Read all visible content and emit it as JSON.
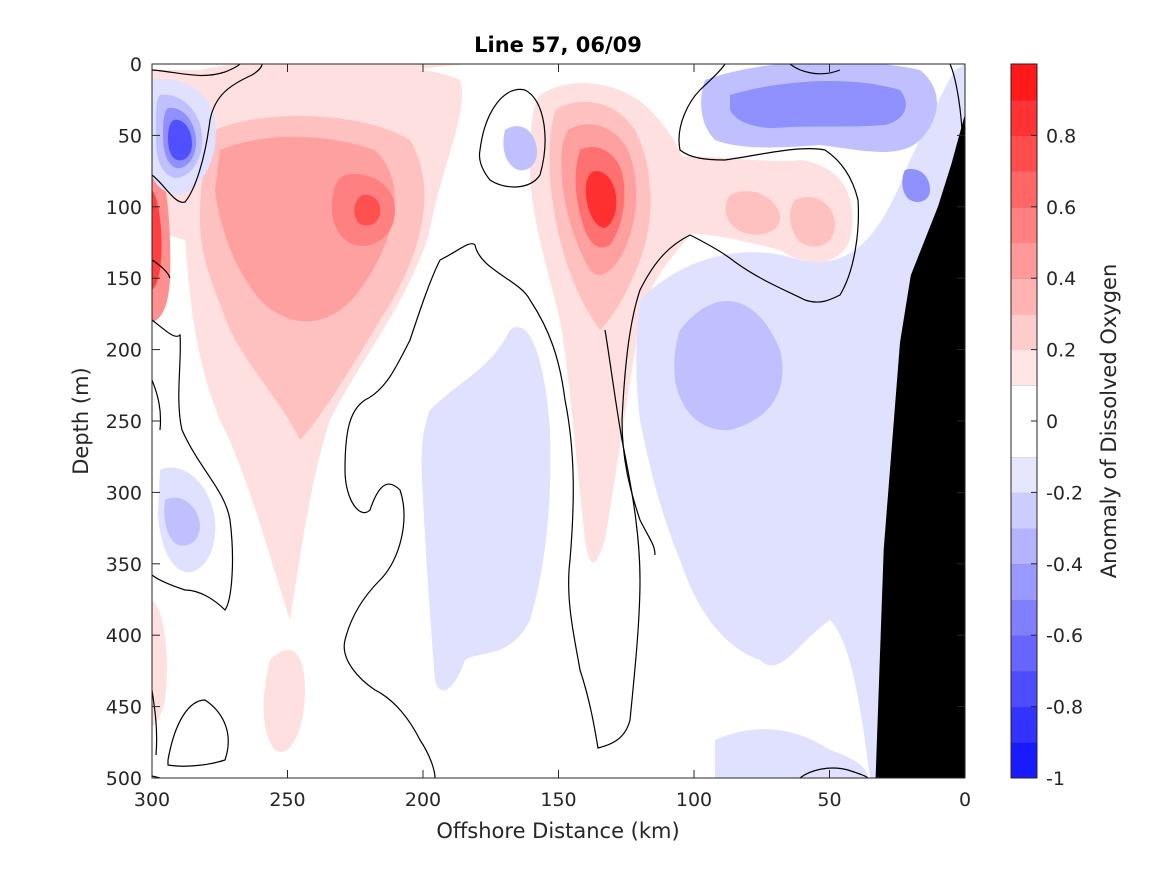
{
  "chart_data": {
    "type": "heatmap",
    "subtype": "filled-contour",
    "title": "Line 57, 06/09",
    "xlabel": "Offshore Distance (km)",
    "ylabel": "Depth (m)",
    "xlim": [
      300,
      0
    ],
    "ylim": [
      0,
      500
    ],
    "x_reversed": true,
    "y_reversed": true,
    "xticks": [
      "300",
      "250",
      "200",
      "150",
      "100",
      "50",
      "0"
    ],
    "yticks": [
      "0",
      "50",
      "100",
      "150",
      "200",
      "250",
      "300",
      "350",
      "400",
      "450",
      "500"
    ],
    "colorbar": {
      "label": "Anomaly of Dissolved Oxygen",
      "range": [
        -1,
        1
      ],
      "step": 0.1,
      "ticks": [
        "0.8",
        "0.6",
        "0.4",
        "0.2",
        "0",
        "-0.2",
        "-0.4",
        "-0.6",
        "-0.8",
        "-1"
      ],
      "tick_values": [
        0.8,
        0.6,
        0.4,
        0.2,
        0,
        -0.2,
        -0.4,
        -0.6,
        -0.8,
        -1
      ],
      "colormap": "blue-white-red",
      "positive_color": "#ff0000",
      "negative_color": "#0000ff",
      "neutral_color": "#ffffff"
    },
    "contour_line_level": 0,
    "bathymetry_color": "#000000",
    "features": [
      {
        "kind": "max",
        "x": 135,
        "y": 95,
        "value": 0.8
      },
      {
        "kind": "max",
        "x": 220,
        "y": 100,
        "value": 0.6
      },
      {
        "kind": "max",
        "x": 300,
        "y": 130,
        "value": 0.6
      },
      {
        "kind": "max",
        "x": 255,
        "y": 150,
        "value": 0.5
      },
      {
        "kind": "min",
        "x": 288,
        "y": 60,
        "value": -0.6
      },
      {
        "kind": "min",
        "x": 80,
        "y": 30,
        "value": -0.4
      },
      {
        "kind": "min",
        "x": 90,
        "y": 220,
        "value": -0.3
      },
      {
        "kind": "min",
        "x": 288,
        "y": 320,
        "value": -0.3
      },
      {
        "kind": "min",
        "x": 165,
        "y": 55,
        "value": -0.2
      },
      {
        "kind": "min",
        "x": 8,
        "y": 85,
        "value": -0.4
      }
    ],
    "bathymetry": [
      {
        "x": 0,
        "y": 35
      },
      {
        "x": 5,
        "y": 70
      },
      {
        "x": 10,
        "y": 100
      },
      {
        "x": 20,
        "y": 148
      },
      {
        "x": 24,
        "y": 195
      },
      {
        "x": 30,
        "y": 340
      },
      {
        "x": 33,
        "y": 500
      }
    ],
    "grid": false,
    "legend": "colorbar-right"
  }
}
